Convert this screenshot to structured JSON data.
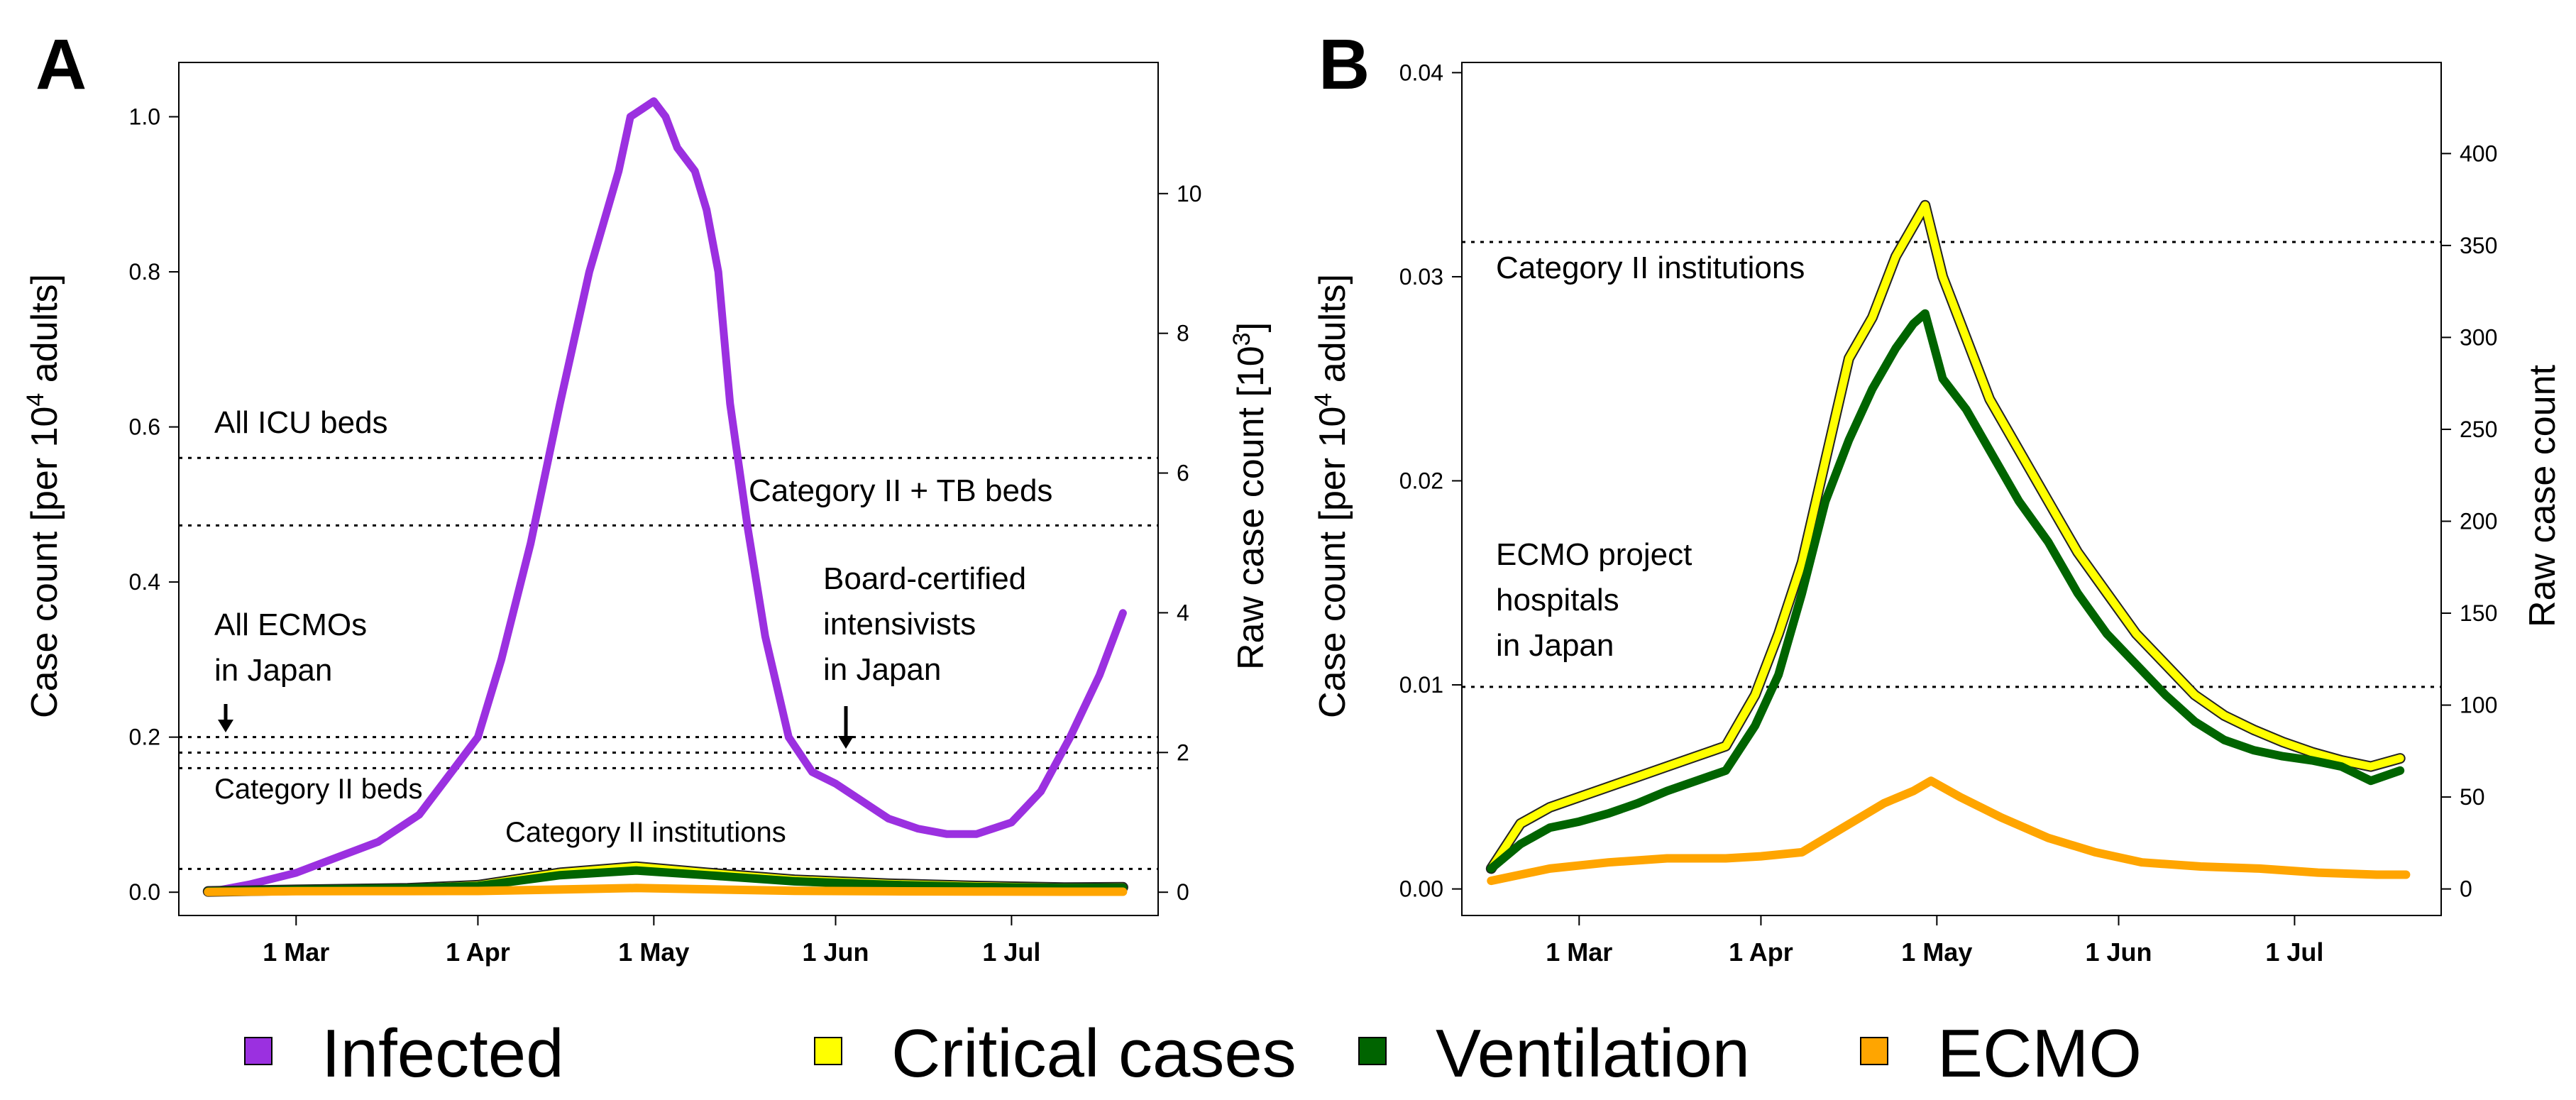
{
  "chart_data": [
    {
      "panel_label": "A",
      "type": "line",
      "xlabel": "",
      "ylabel": "Case count [per 10",
      "ylabel_sup": "4",
      "ylabel_tail": " adults]",
      "ylabel_right": "Raw case count [10",
      "ylabel_right_sup": "3",
      "ylabel_right_tail": "]",
      "x_range": [
        "2020-02-10",
        "2020-07-26"
      ],
      "ylim": [
        -0.03,
        1.07
      ],
      "yticks": [
        "0.0",
        "0.2",
        "0.4",
        "0.6",
        "0.8",
        "1.0"
      ],
      "yticks_right": [
        "0",
        "2",
        "4",
        "6",
        "8",
        "10"
      ],
      "right_axis_per_unit": 11.1,
      "xticks": [
        {
          "label": "1 Mar",
          "date": "2020-03-01"
        },
        {
          "label": "1 Apr",
          "date": "2020-04-01"
        },
        {
          "label": "1 May",
          "date": "2020-05-01"
        },
        {
          "label": "1 Jun",
          "date": "2020-06-01"
        },
        {
          "label": "1 Jul",
          "date": "2020-07-01"
        }
      ],
      "grid": false,
      "hlines": [
        {
          "y": 0.56,
          "label": "All ICU beds"
        },
        {
          "y": 0.473,
          "label": "Category II + TB beds"
        },
        {
          "y": 0.2,
          "label": "All ECMOs in Japan"
        },
        {
          "y": 0.18,
          "label": "Board-certified intensivists in Japan"
        },
        {
          "y": 0.16,
          "label": "Category II beds"
        },
        {
          "y": 0.03,
          "label": "Category II institutions"
        }
      ],
      "annotations": [
        {
          "lines": [
            "All ICU beds"
          ]
        },
        {
          "lines": [
            "Category II + TB beds"
          ]
        },
        {
          "lines": [
            "All ECMOs",
            "in Japan"
          ],
          "arrow": true
        },
        {
          "lines": [
            "Board-certified",
            "intensivists",
            "in Japan"
          ],
          "arrow": true
        },
        {
          "lines": [
            "Category II beds"
          ]
        },
        {
          "lines": [
            "Category II institutions"
          ]
        }
      ],
      "series": [
        {
          "name": "Infected",
          "color": "#9b30e0",
          "x": [
            "2020-02-15",
            "2020-02-22",
            "2020-03-01",
            "2020-03-08",
            "2020-03-15",
            "2020-03-22",
            "2020-03-28",
            "2020-04-01",
            "2020-04-05",
            "2020-04-10",
            "2020-04-15",
            "2020-04-20",
            "2020-04-25",
            "2020-04-27",
            "2020-04-29",
            "2020-05-01",
            "2020-05-03",
            "2020-05-05",
            "2020-05-08",
            "2020-05-10",
            "2020-05-12",
            "2020-05-14",
            "2020-05-17",
            "2020-05-20",
            "2020-05-24",
            "2020-05-28",
            "2020-06-01",
            "2020-06-05",
            "2020-06-10",
            "2020-06-15",
            "2020-06-20",
            "2020-06-25",
            "2020-07-01",
            "2020-07-06",
            "2020-07-11",
            "2020-07-16",
            "2020-07-20"
          ],
          "values": [
            0.0,
            0.01,
            0.025,
            0.045,
            0.065,
            0.1,
            0.16,
            0.2,
            0.3,
            0.45,
            0.63,
            0.8,
            0.93,
            1.0,
            1.01,
            1.02,
            1.0,
            0.96,
            0.93,
            0.88,
            0.8,
            0.63,
            0.47,
            0.33,
            0.2,
            0.155,
            0.14,
            0.12,
            0.095,
            0.082,
            0.075,
            0.075,
            0.09,
            0.13,
            0.2,
            0.28,
            0.36
          ]
        },
        {
          "name": "Critical cases",
          "color": "#ffff00",
          "x": [
            "2020-02-15",
            "2020-03-01",
            "2020-03-20",
            "2020-04-01",
            "2020-04-15",
            "2020-04-28",
            "2020-05-10",
            "2020-05-25",
            "2020-06-10",
            "2020-06-25",
            "2020-07-10",
            "2020-07-20"
          ],
          "values": [
            0.001,
            0.003,
            0.005,
            0.009,
            0.025,
            0.033,
            0.025,
            0.016,
            0.011,
            0.008,
            0.006,
            0.0063
          ]
        },
        {
          "name": "Ventilation",
          "color": "#006400",
          "x": [
            "2020-02-15",
            "2020-03-01",
            "2020-03-20",
            "2020-04-01",
            "2020-04-15",
            "2020-04-28",
            "2020-05-10",
            "2020-05-25",
            "2020-06-10",
            "2020-06-25",
            "2020-07-10",
            "2020-07-20"
          ],
          "values": [
            0.001,
            0.003,
            0.005,
            0.008,
            0.022,
            0.028,
            0.022,
            0.014,
            0.0095,
            0.0068,
            0.0055,
            0.0058
          ]
        },
        {
          "name": "ECMO",
          "color": "#ffa500",
          "x": [
            "2020-02-15",
            "2020-03-01",
            "2020-03-20",
            "2020-04-01",
            "2020-04-15",
            "2020-04-28",
            "2020-05-10",
            "2020-05-25",
            "2020-06-10",
            "2020-06-25",
            "2020-07-10",
            "2020-07-20"
          ],
          "values": [
            0.0004,
            0.0013,
            0.0015,
            0.0016,
            0.0035,
            0.0054,
            0.0038,
            0.0018,
            0.0012,
            0.0009,
            0.0007,
            0.0007
          ]
        }
      ]
    },
    {
      "panel_label": "B",
      "type": "line",
      "xlabel": "",
      "ylabel": "Case count [per 10",
      "ylabel_sup": "4",
      "ylabel_tail": " adults]",
      "ylabel_right": "Raw case count",
      "ylabel_right_sup": "",
      "ylabel_right_tail": "",
      "x_range": [
        "2020-02-10",
        "2020-07-26"
      ],
      "ylim": [
        -0.0013,
        0.0405
      ],
      "yticks": [
        "0.00",
        "0.01",
        "0.02",
        "0.03",
        "0.04"
      ],
      "yticks_right": [
        "0",
        "50",
        "100",
        "150",
        "200",
        "250",
        "300",
        "350",
        "400"
      ],
      "right_axis_per_unit": 11100,
      "xticks": [
        {
          "label": "1 Mar",
          "date": "2020-03-01"
        },
        {
          "label": "1 Apr",
          "date": "2020-04-01"
        },
        {
          "label": "1 May",
          "date": "2020-05-01"
        },
        {
          "label": "1 Jun",
          "date": "2020-06-01"
        },
        {
          "label": "1 Jul",
          "date": "2020-07-01"
        }
      ],
      "grid": false,
      "hlines": [
        {
          "y": 0.0317,
          "label": "Category II institutions"
        },
        {
          "y": 0.0099,
          "label": "ECMO project hospitals in Japan"
        }
      ],
      "annotations": [
        {
          "lines": [
            "Category II institutions"
          ]
        },
        {
          "lines": [
            "ECMO project",
            "hospitals",
            "in Japan"
          ]
        }
      ],
      "series": [
        {
          "name": "Critical cases",
          "color": "#ffff00",
          "x": [
            "2020-02-15",
            "2020-02-20",
            "2020-02-25",
            "2020-03-01",
            "2020-03-06",
            "2020-03-11",
            "2020-03-16",
            "2020-03-21",
            "2020-03-26",
            "2020-03-31",
            "2020-04-04",
            "2020-04-08",
            "2020-04-12",
            "2020-04-16",
            "2020-04-20",
            "2020-04-24",
            "2020-04-27",
            "2020-04-29",
            "2020-05-02",
            "2020-05-06",
            "2020-05-10",
            "2020-05-15",
            "2020-05-20",
            "2020-05-25",
            "2020-05-30",
            "2020-06-04",
            "2020-06-09",
            "2020-06-14",
            "2020-06-19",
            "2020-06-24",
            "2020-06-29",
            "2020-07-04",
            "2020-07-09",
            "2020-07-14",
            "2020-07-19"
          ],
          "values": [
            0.001,
            0.0032,
            0.004,
            0.0045,
            0.005,
            0.0055,
            0.006,
            0.0065,
            0.007,
            0.0095,
            0.0125,
            0.016,
            0.021,
            0.026,
            0.028,
            0.031,
            0.0325,
            0.0335,
            0.03,
            0.027,
            0.024,
            0.0215,
            0.019,
            0.0165,
            0.0145,
            0.0125,
            0.011,
            0.0095,
            0.0085,
            0.0078,
            0.0072,
            0.0067,
            0.0063,
            0.006,
            0.0064
          ]
        },
        {
          "name": "Ventilation",
          "color": "#006400",
          "x": [
            "2020-02-15",
            "2020-02-20",
            "2020-02-25",
            "2020-03-01",
            "2020-03-06",
            "2020-03-11",
            "2020-03-16",
            "2020-03-21",
            "2020-03-26",
            "2020-03-31",
            "2020-04-04",
            "2020-04-08",
            "2020-04-12",
            "2020-04-16",
            "2020-04-20",
            "2020-04-24",
            "2020-04-27",
            "2020-04-29",
            "2020-05-02",
            "2020-05-06",
            "2020-05-10",
            "2020-05-15",
            "2020-05-20",
            "2020-05-25",
            "2020-05-30",
            "2020-06-04",
            "2020-06-09",
            "2020-06-14",
            "2020-06-19",
            "2020-06-24",
            "2020-06-29",
            "2020-07-04",
            "2020-07-09",
            "2020-07-14",
            "2020-07-19"
          ],
          "values": [
            0.001,
            0.0022,
            0.003,
            0.0033,
            0.0037,
            0.0042,
            0.0048,
            0.0053,
            0.0058,
            0.008,
            0.0105,
            0.0145,
            0.019,
            0.022,
            0.0245,
            0.0265,
            0.0277,
            0.0282,
            0.025,
            0.0235,
            0.0215,
            0.019,
            0.017,
            0.0145,
            0.0125,
            0.011,
            0.0095,
            0.0082,
            0.0073,
            0.0068,
            0.0065,
            0.0063,
            0.006,
            0.0053,
            0.0058
          ]
        },
        {
          "name": "ECMO",
          "color": "#ffa500",
          "x": [
            "2020-02-15",
            "2020-02-25",
            "2020-03-06",
            "2020-03-16",
            "2020-03-26",
            "2020-04-01",
            "2020-04-08",
            "2020-04-15",
            "2020-04-22",
            "2020-04-27",
            "2020-04-30",
            "2020-05-05",
            "2020-05-12",
            "2020-05-20",
            "2020-05-28",
            "2020-06-05",
            "2020-06-15",
            "2020-06-25",
            "2020-07-05",
            "2020-07-15",
            "2020-07-20"
          ],
          "values": [
            0.0004,
            0.001,
            0.0013,
            0.0015,
            0.0015,
            0.0016,
            0.0018,
            0.003,
            0.0042,
            0.0048,
            0.0053,
            0.0045,
            0.0035,
            0.0025,
            0.0018,
            0.0013,
            0.0011,
            0.001,
            0.0008,
            0.0007,
            0.0007
          ]
        }
      ]
    }
  ],
  "legend": [
    {
      "name": "Infected",
      "color": "#9b30e0"
    },
    {
      "name": "Critical cases",
      "color": "#ffff00"
    },
    {
      "name": "Ventilation",
      "color": "#006400"
    },
    {
      "name": "ECMO",
      "color": "#ffa500"
    }
  ]
}
